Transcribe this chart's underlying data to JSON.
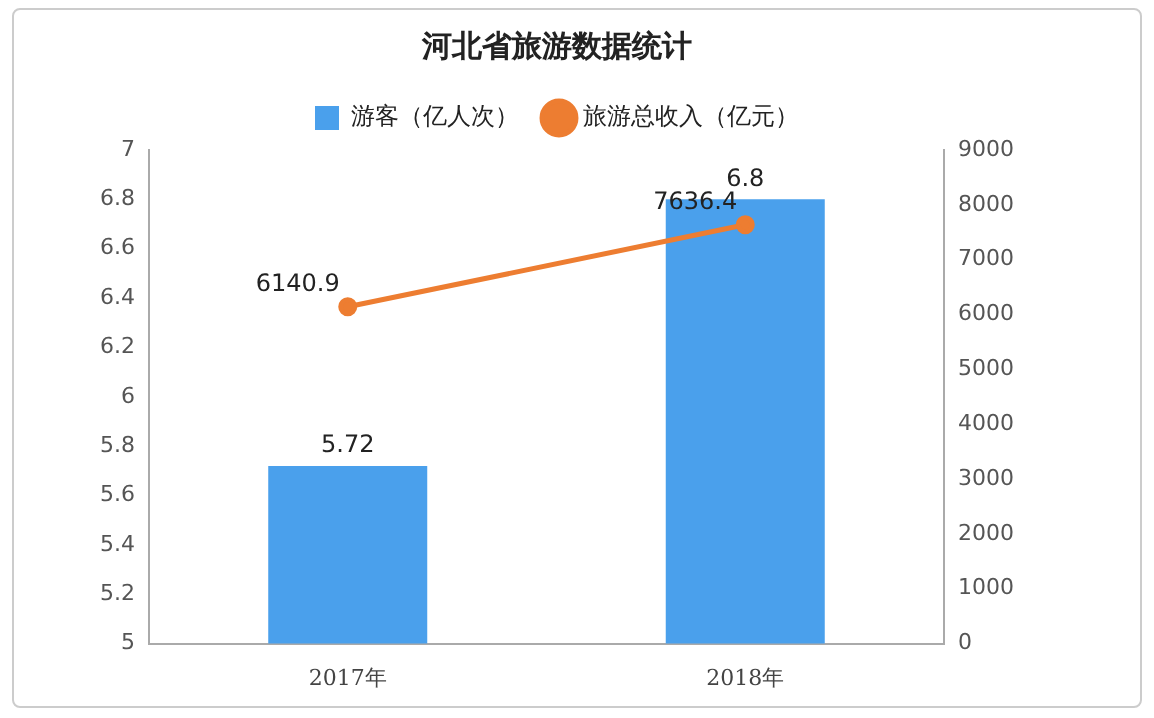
{
  "chart_data": {
    "type": "bar",
    "title": "河北省旅游数据统计",
    "categories": [
      "2017年",
      "2018年"
    ],
    "series": [
      {
        "name": "游客（亿人次）",
        "color": "#4aa0ec",
        "values": [
          5.72,
          6.8
        ]
      },
      {
        "name": "旅游总收入（亿元）",
        "type": "line",
        "axis": "y2",
        "color": "#ed7d31",
        "values": [
          6140.9,
          7636.4
        ]
      }
    ],
    "ylim": [
      5,
      7
    ],
    "yticks": [
      5,
      5.2,
      5.4,
      5.6,
      5.8,
      6,
      6.2,
      6.4,
      6.6,
      6.8,
      7
    ],
    "y2lim": [
      0,
      9000
    ],
    "y2ticks": [
      0,
      1000,
      2000,
      3000,
      4000,
      5000,
      6000,
      7000,
      8000,
      9000
    ],
    "data_labels": true,
    "legend": "top",
    "marker": "circle"
  }
}
